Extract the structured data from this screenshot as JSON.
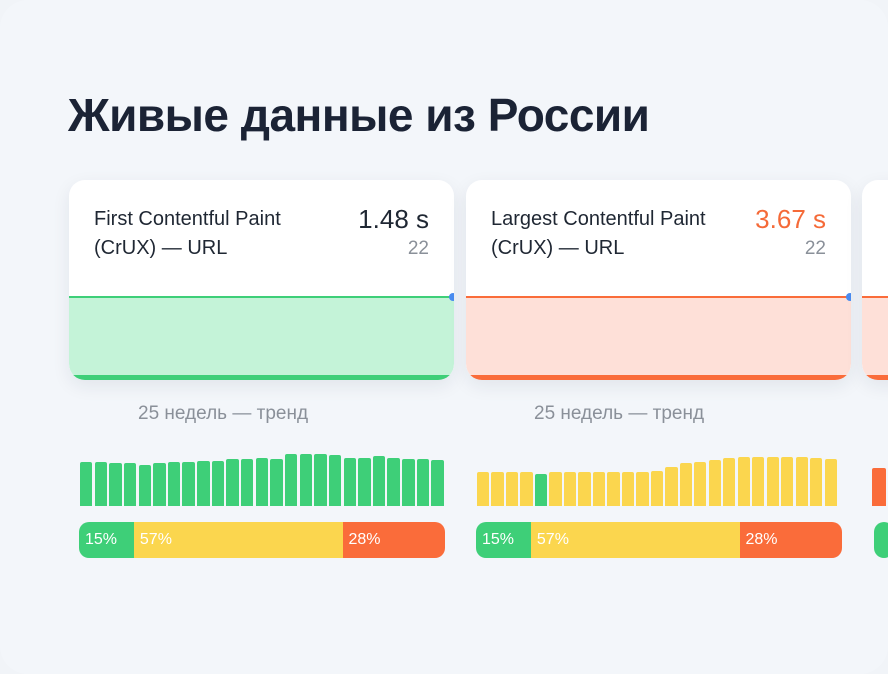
{
  "title": "Живые данные из России",
  "colors": {
    "good": "#3ecf78",
    "good_fill": "#c4f3d8",
    "medium": "#fbd64e",
    "poor": "#fa6c3a",
    "poor_fill": "#fee0d8",
    "marker": "#4a8cf0"
  },
  "cards": [
    {
      "label": "First Contentful Paint (CrUX) — URL",
      "value": "1.48 s",
      "count": "22",
      "status": "good",
      "trend_label": "25 недель — тренд",
      "trend_bars": [
        {
          "level": 0.78,
          "status": "good"
        },
        {
          "level": 0.78,
          "status": "good"
        },
        {
          "level": 0.76,
          "status": "good"
        },
        {
          "level": 0.76,
          "status": "good"
        },
        {
          "level": 0.74,
          "status": "good"
        },
        {
          "level": 0.76,
          "status": "good"
        },
        {
          "level": 0.78,
          "status": "good"
        },
        {
          "level": 0.78,
          "status": "good"
        },
        {
          "level": 0.8,
          "status": "good"
        },
        {
          "level": 0.8,
          "status": "good"
        },
        {
          "level": 0.84,
          "status": "good"
        },
        {
          "level": 0.84,
          "status": "good"
        },
        {
          "level": 0.86,
          "status": "good"
        },
        {
          "level": 0.84,
          "status": "good"
        },
        {
          "level": 0.93,
          "status": "good"
        },
        {
          "level": 0.93,
          "status": "good"
        },
        {
          "level": 0.93,
          "status": "good"
        },
        {
          "level": 0.91,
          "status": "good"
        },
        {
          "level": 0.86,
          "status": "good"
        },
        {
          "level": 0.86,
          "status": "good"
        },
        {
          "level": 0.89,
          "status": "good"
        },
        {
          "level": 0.86,
          "status": "good"
        },
        {
          "level": 0.84,
          "status": "good"
        },
        {
          "level": 0.84,
          "status": "good"
        },
        {
          "level": 0.82,
          "status": "good"
        }
      ],
      "distribution": [
        {
          "label": "15%",
          "value": 15,
          "status": "good"
        },
        {
          "label": "57%",
          "value": 57,
          "status": "medium"
        },
        {
          "label": "28%",
          "value": 28,
          "status": "poor"
        }
      ]
    },
    {
      "label": "Largest Contentful Paint (CrUX) — URL",
      "value": "3.67 s",
      "count": "22",
      "status": "poor",
      "trend_label": "25 недель — тренд",
      "trend_bars": [
        {
          "level": 0.6,
          "status": "medium"
        },
        {
          "level": 0.6,
          "status": "medium"
        },
        {
          "level": 0.6,
          "status": "medium"
        },
        {
          "level": 0.6,
          "status": "medium"
        },
        {
          "level": 0.58,
          "status": "good"
        },
        {
          "level": 0.6,
          "status": "medium"
        },
        {
          "level": 0.6,
          "status": "medium"
        },
        {
          "level": 0.6,
          "status": "medium"
        },
        {
          "level": 0.6,
          "status": "medium"
        },
        {
          "level": 0.6,
          "status": "medium"
        },
        {
          "level": 0.6,
          "status": "medium"
        },
        {
          "level": 0.6,
          "status": "medium"
        },
        {
          "level": 0.62,
          "status": "medium"
        },
        {
          "level": 0.7,
          "status": "medium"
        },
        {
          "level": 0.76,
          "status": "medium"
        },
        {
          "level": 0.78,
          "status": "medium"
        },
        {
          "level": 0.82,
          "status": "medium"
        },
        {
          "level": 0.86,
          "status": "medium"
        },
        {
          "level": 0.88,
          "status": "medium"
        },
        {
          "level": 0.88,
          "status": "medium"
        },
        {
          "level": 0.88,
          "status": "medium"
        },
        {
          "level": 0.88,
          "status": "medium"
        },
        {
          "level": 0.88,
          "status": "medium"
        },
        {
          "level": 0.86,
          "status": "medium"
        },
        {
          "level": 0.84,
          "status": "medium"
        }
      ],
      "distribution": [
        {
          "label": "15%",
          "value": 15,
          "status": "good"
        },
        {
          "label": "57%",
          "value": 57,
          "status": "medium"
        },
        {
          "label": "28%",
          "value": 28,
          "status": "poor"
        }
      ]
    }
  ]
}
